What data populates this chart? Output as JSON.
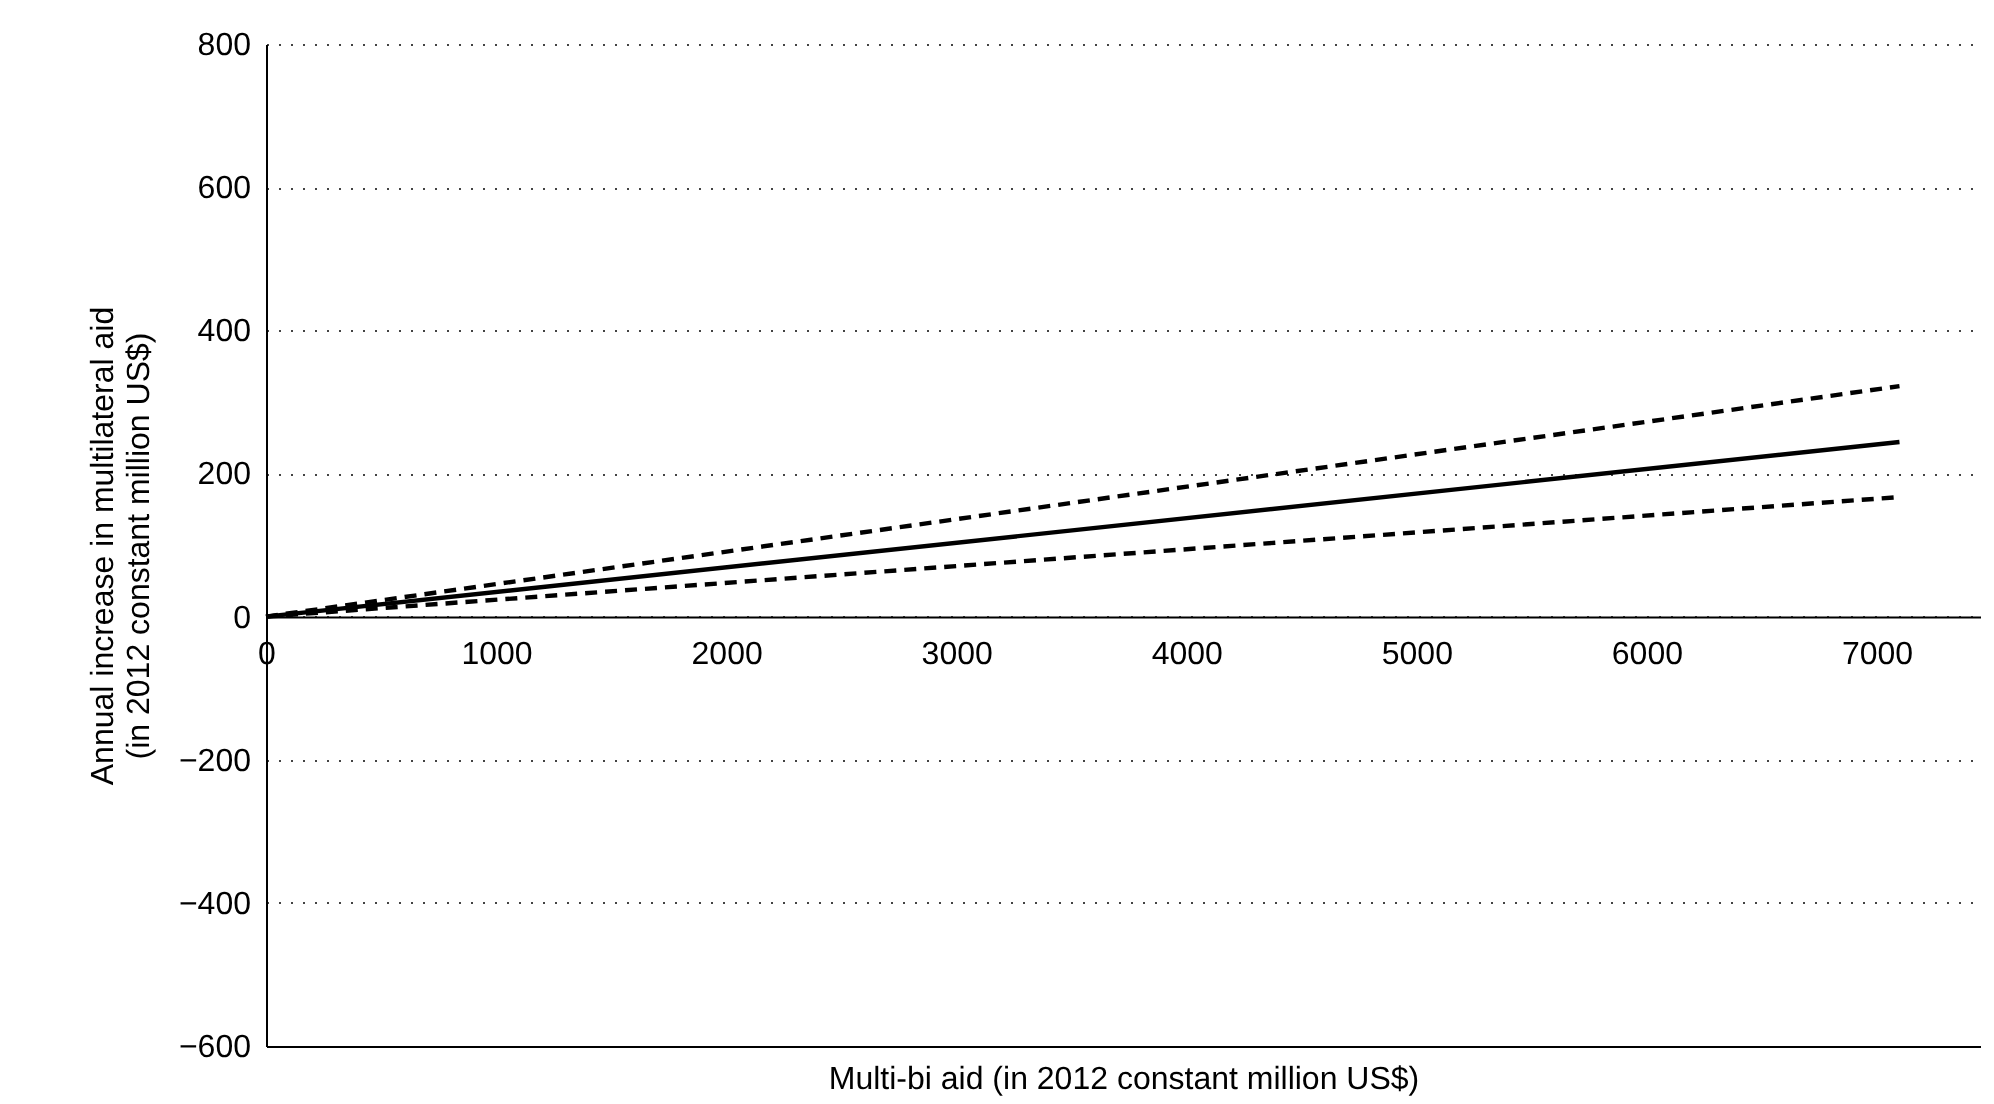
{
  "chart_data": {
    "type": "line",
    "xlabel": "Multi-bi aid (in 2012 constant million US$)",
    "ylabel": "Annual increase in multilateral aid\n(in 2012 constant million US$)",
    "xlim": [
      0,
      7450
    ],
    "xticks": [
      0,
      1000,
      2000,
      3000,
      4000,
      5000,
      6000,
      7000
    ],
    "ylim": [
      -600,
      800
    ],
    "yticks": [
      {
        "value": -600,
        "label": "−600"
      },
      {
        "value": -400,
        "label": "−400"
      },
      {
        "value": -200,
        "label": "−200"
      },
      0,
      200,
      400,
      600,
      800
    ],
    "grid": "y",
    "x": [
      0,
      7100
    ],
    "series": [
      {
        "color": "#000000",
        "line_style": "solid",
        "values": [
          0,
          244
        ]
      },
      {
        "color": "#000000",
        "line_style": "dashed",
        "values": [
          0,
          322
        ]
      },
      {
        "color": "#000000",
        "line_style": "dashed",
        "values": [
          0,
          167
        ]
      }
    ]
  }
}
